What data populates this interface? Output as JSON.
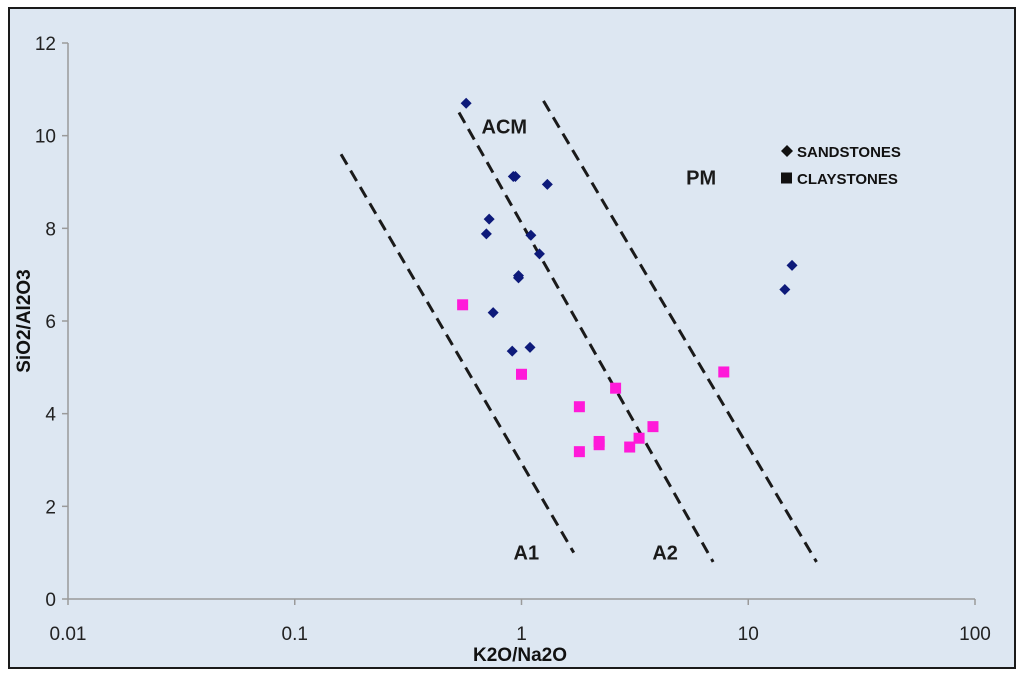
{
  "chart_data": {
    "type": "scatter",
    "xscale": "log",
    "xlim": [
      0.01,
      100
    ],
    "ylim": [
      0,
      12
    ],
    "xlabel": "K2O/Na2O",
    "ylabel": "SiO2/Al2O3",
    "x_tick_labels": [
      "0.01",
      "0.1",
      "1",
      "10",
      "100"
    ],
    "x_tick_values": [
      0.01,
      0.1,
      1,
      10,
      100
    ],
    "y_tick_labels": [
      "0",
      "2",
      "4",
      "6",
      "8",
      "10",
      "12"
    ],
    "y_tick_values": [
      0,
      2,
      4,
      6,
      8,
      10,
      12
    ],
    "grid": false,
    "legend_position": "top-right",
    "colors": {
      "plot_background": "#dde7f2",
      "frame": "#1a1a1a",
      "sandstones": "#0d1a7a",
      "claystones": "#ff1ad9",
      "boundary": "#1a1a1a"
    },
    "series": [
      {
        "name": "SANDSTONES",
        "marker": "diamond",
        "points": [
          {
            "x": 0.57,
            "y": 10.7
          },
          {
            "x": 0.92,
            "y": 9.12
          },
          {
            "x": 0.94,
            "y": 9.12
          },
          {
            "x": 1.3,
            "y": 8.95
          },
          {
            "x": 0.72,
            "y": 8.2
          },
          {
            "x": 0.7,
            "y": 7.88
          },
          {
            "x": 1.1,
            "y": 7.85
          },
          {
            "x": 1.2,
            "y": 7.45
          },
          {
            "x": 0.97,
            "y": 6.98
          },
          {
            "x": 0.97,
            "y": 6.93
          },
          {
            "x": 0.75,
            "y": 6.18
          },
          {
            "x": 0.91,
            "y": 5.35
          },
          {
            "x": 1.09,
            "y": 5.43
          },
          {
            "x": 14.5,
            "y": 6.68
          },
          {
            "x": 15.6,
            "y": 7.2
          }
        ]
      },
      {
        "name": "CLAYSTONES",
        "marker": "square",
        "points": [
          {
            "x": 0.55,
            "y": 6.35
          },
          {
            "x": 1.0,
            "y": 4.85
          },
          {
            "x": 1.8,
            "y": 4.15
          },
          {
            "x": 1.8,
            "y": 3.18
          },
          {
            "x": 2.2,
            "y": 3.33
          },
          {
            "x": 2.2,
            "y": 3.4
          },
          {
            "x": 2.6,
            "y": 4.55
          },
          {
            "x": 3.0,
            "y": 3.28
          },
          {
            "x": 3.3,
            "y": 3.47
          },
          {
            "x": 3.8,
            "y": 3.72
          },
          {
            "x": 7.8,
            "y": 4.9
          }
        ]
      }
    ],
    "boundaries": [
      {
        "name": "A1-boundary",
        "from": {
          "x": 0.16,
          "y": 9.6
        },
        "to": {
          "x": 1.7,
          "y": 1.0
        }
      },
      {
        "name": "A2-boundary",
        "from": {
          "x": 0.53,
          "y": 10.5
        },
        "to": {
          "x": 7.0,
          "y": 0.8
        }
      },
      {
        "name": "PM-boundary",
        "from": {
          "x": 1.25,
          "y": 10.75
        },
        "to": {
          "x": 20.0,
          "y": 0.8
        }
      }
    ],
    "annotations": [
      {
        "text": "ACM",
        "x": 0.84,
        "y": 10.2
      },
      {
        "text": "PM",
        "x": 6.2,
        "y": 9.1
      },
      {
        "text": "A1",
        "x": 1.05,
        "y": 1.0
      },
      {
        "text": "A2",
        "x": 4.3,
        "y": 1.0
      }
    ]
  }
}
